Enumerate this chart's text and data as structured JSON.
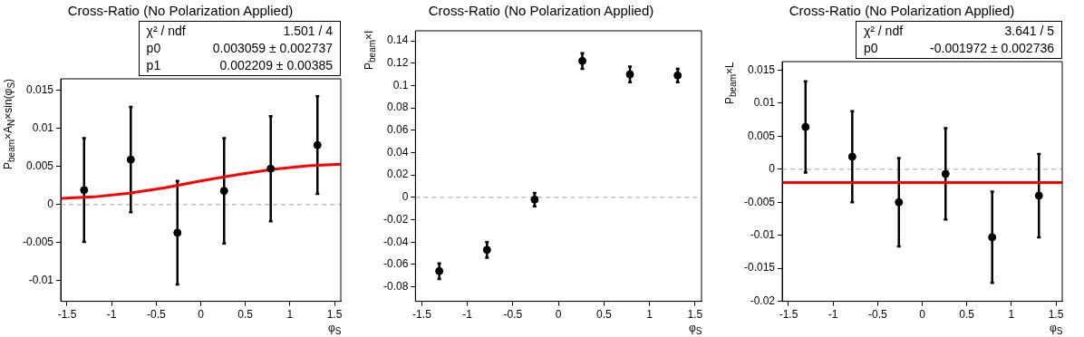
{
  "chart_data": [
    {
      "type": "scatter",
      "title": "Cross-Ratio (No Polarization Applied)",
      "xlabel": "φ$_{S}$",
      "ylabel": "P$_{beam}$×A$_{N}$×sin(φ$_{S}$)",
      "xlim": [
        -1.5708,
        1.5708
      ],
      "xticks": [
        -1.5,
        -1,
        -0.5,
        0,
        0.5,
        1,
        1.5
      ],
      "ylim": [
        -0.0127,
        0.0165
      ],
      "yticks": [
        -0.01,
        -0.005,
        0,
        0.005,
        0.01,
        0.015
      ],
      "marker": "circle",
      "series": [
        {
          "color": "#000000",
          "x": [
            -1.309,
            -0.785,
            -0.262,
            0.262,
            0.785,
            1.309
          ],
          "values": [
            0.0019,
            0.0059,
            -0.0037,
            0.0018,
            0.0047,
            0.0078
          ],
          "errors": [
            0.0068,
            0.0069,
            0.0068,
            0.0069,
            0.0069,
            0.0064
          ]
        },
        {
          "type": "line",
          "color": "#ff0000",
          "marker": "none",
          "x": [
            -1.5708,
            -1.2,
            -0.8,
            -0.4,
            0,
            0.4,
            0.8,
            1.2,
            1.5708
          ],
          "values": [
            0.0008,
            0.001,
            0.0015,
            0.0022,
            0.0031,
            0.0039,
            0.0046,
            0.0051,
            0.0053
          ]
        }
      ],
      "ref_lines": [
        {
          "axis": "y",
          "value": 0,
          "color": "#c0c0c0",
          "line_style": "dashed"
        }
      ],
      "annotations": [
        "χ² / ndf",
        "1.501 / 4",
        "p0",
        "0.003059 ± 0.002737",
        "p1",
        "0.002209 ± 0.00385"
      ]
    },
    {
      "type": "scatter",
      "title": "Cross-Ratio (No Polarization Applied)",
      "xlabel": "φ$_{S}$",
      "ylabel": "P$_{beam}$×I",
      "xlim": [
        -1.5708,
        1.5708
      ],
      "xticks": [
        -1.5,
        -1,
        -0.5,
        0,
        0.5,
        1,
        1.5
      ],
      "ylim": [
        -0.093,
        0.149
      ],
      "yticks": [
        -0.08,
        -0.06,
        -0.04,
        -0.02,
        0,
        0.02,
        0.04,
        0.06,
        0.08,
        0.1,
        0.12,
        0.14
      ],
      "marker": "circle",
      "series": [
        {
          "color": "#000000",
          "x": [
            -1.309,
            -0.785,
            -0.262,
            0.262,
            0.785,
            1.309
          ],
          "values": [
            -0.066,
            -0.047,
            -0.002,
            0.122,
            0.11,
            0.109
          ],
          "errors": [
            0.007,
            0.007,
            0.006,
            0.007,
            0.007,
            0.006
          ]
        }
      ],
      "ref_lines": [
        {
          "axis": "y",
          "value": 0,
          "color": "#c0c0c0",
          "line_style": "dashed"
        }
      ]
    },
    {
      "type": "scatter",
      "title": "Cross-Ratio (No Polarization Applied)",
      "xlabel": "φ$_{S}$",
      "ylabel": "P$_{beam}$×L",
      "xlim": [
        -1.5708,
        1.5708
      ],
      "xticks": [
        -1.5,
        -1,
        -0.5,
        0,
        0.5,
        1,
        1.5
      ],
      "ylim": [
        -0.02,
        0.0163
      ],
      "yticks": [
        -0.02,
        -0.015,
        -0.01,
        -0.005,
        0,
        0.005,
        0.01,
        0.015
      ],
      "marker": "circle",
      "series": [
        {
          "color": "#000000",
          "x": [
            -1.309,
            -0.785,
            -0.262,
            0.262,
            0.785,
            1.309
          ],
          "values": [
            0.0064,
            0.0019,
            -0.005,
            -0.0007,
            -0.0103,
            -0.004
          ],
          "errors": [
            0.0069,
            0.0069,
            0.0067,
            0.0069,
            0.0069,
            0.0063
          ]
        },
        {
          "type": "line",
          "color": "#ff0000",
          "marker": "none",
          "x": [
            -1.5708,
            1.5708
          ],
          "values": [
            -0.002,
            -0.002
          ]
        }
      ],
      "ref_lines": [
        {
          "axis": "y",
          "value": 0,
          "color": "#c0c0c0",
          "line_style": "dashed"
        }
      ],
      "annotations": [
        "χ² / ndf",
        "3.641 / 5",
        "p0",
        "-0.001972 ± 0.002736"
      ]
    }
  ]
}
